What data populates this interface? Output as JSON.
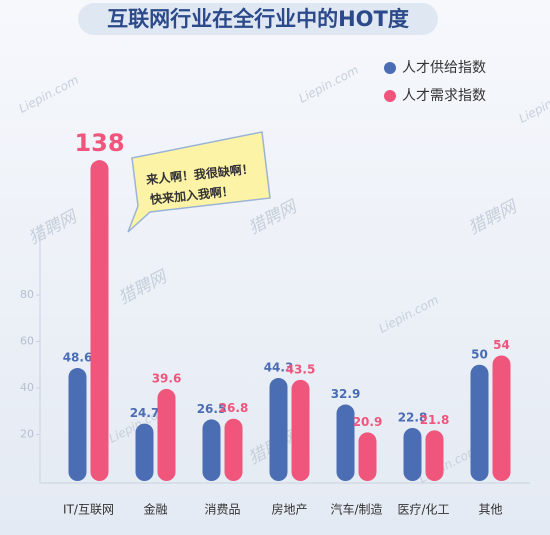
{
  "chart_data": {
    "type": "bar",
    "title": "互联网行业在全行业中的HOT度",
    "categories": [
      "IT/互联网",
      "金融",
      "消费品",
      "房地产",
      "汽车/制造",
      "医疗/化工",
      "其他"
    ],
    "series": [
      {
        "name": "人才供给指数",
        "color": "#4a6db3",
        "values": [
          48.6,
          24.7,
          26.5,
          44.3,
          32.9,
          22.8,
          50
        ]
      },
      {
        "name": "人才需求指数",
        "color": "#f0557c",
        "values": [
          138,
          39.6,
          26.8,
          43.5,
          20.9,
          21.8,
          54
        ]
      }
    ],
    "ylim": [
      0,
      140
    ],
    "yticks": [
      20,
      40,
      60,
      80
    ],
    "legend": "top-right",
    "annotation": [
      "来人啊！我很缺啊！",
      "快来加入我啊！"
    ],
    "watermarks": [
      "猎聘网",
      "Liepin.com"
    ]
  }
}
